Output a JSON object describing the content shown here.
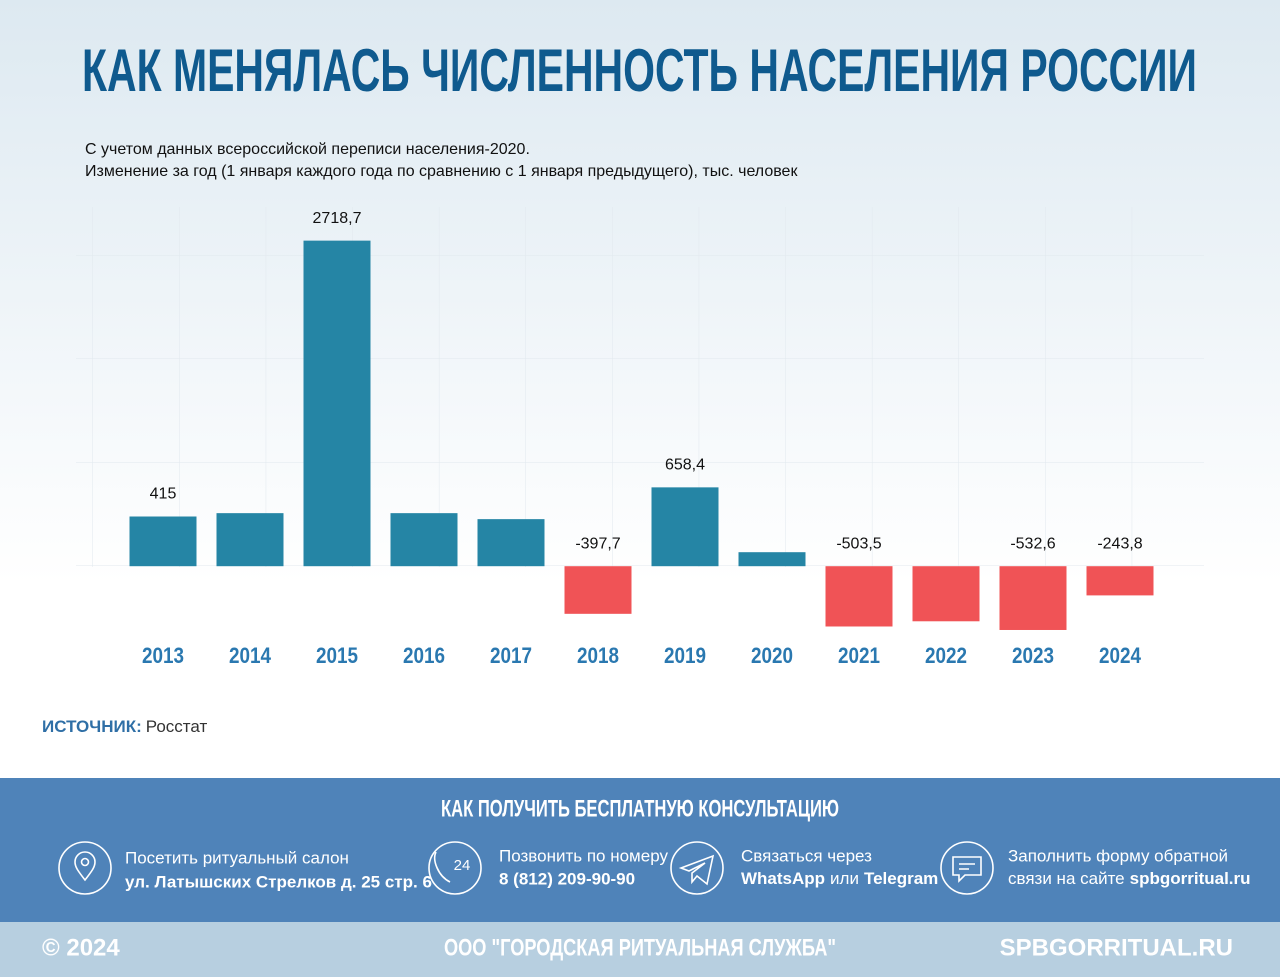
{
  "header": {
    "title": "КАК МЕНЯЛАСЬ ЧИСЛЕННОСТЬ НАСЕЛЕНИЯ РОССИИ",
    "subtitle_lines": [
      "С учетом данных всероссийской переписи населения-2020.",
      "Изменение за год (1 января каждого года по сравнению с 1 января предыдущего), тыс. человек"
    ]
  },
  "chart_data": {
    "type": "bar",
    "categories": [
      "2013",
      "2014",
      "2015",
      "2016",
      "2017",
      "2018",
      "2019",
      "2020",
      "2021",
      "2022",
      "2023",
      "2024"
    ],
    "values": [
      415,
      443,
      2718.7,
      443,
      393,
      -397.7,
      658.4,
      117,
      -503.5,
      -460,
      -532.6,
      -243.8
    ],
    "value_labels": [
      "415",
      null,
      "2718,7",
      null,
      null,
      "-397,7",
      "658,4",
      null,
      "-503,5",
      null,
      "-532,6",
      "-243,8"
    ],
    "color": "#2585a5",
    "negative_color": "#f05356",
    "ylim": [
      -800,
      3200
    ]
  },
  "source": {
    "label": "ИСТОЧНИК:",
    "text": "Росстат"
  },
  "consult": {
    "title": "КАК ПОЛУЧИТЬ БЕСПЛАТНУЮ КОНСУЛЬТАЦИЮ",
    "items": [
      {
        "line1": "Посетить ритуальный салон",
        "line2": [
          "ул. Латышских Стрелков д. 25 стр. 6"
        ]
      },
      {
        "badge": "24",
        "line1": "Позвонить по номеру",
        "line2": [
          "8 (812) 209-90-90"
        ]
      },
      {
        "line1": "Связаться через",
        "line2": [
          "WhatsApp",
          "или",
          "Telegram"
        ]
      },
      {
        "line1": "Заполнить форму обратной",
        "line2": [
          "связи на сайте",
          "spbgorritual.ru"
        ]
      }
    ]
  },
  "footer": {
    "copyright": "© 2024",
    "company": "ООО \"ГОРОДСКАЯ РИТУАЛЬНАЯ СЛУЖБА\"",
    "site": "SPBGORRITUAL.RU"
  }
}
